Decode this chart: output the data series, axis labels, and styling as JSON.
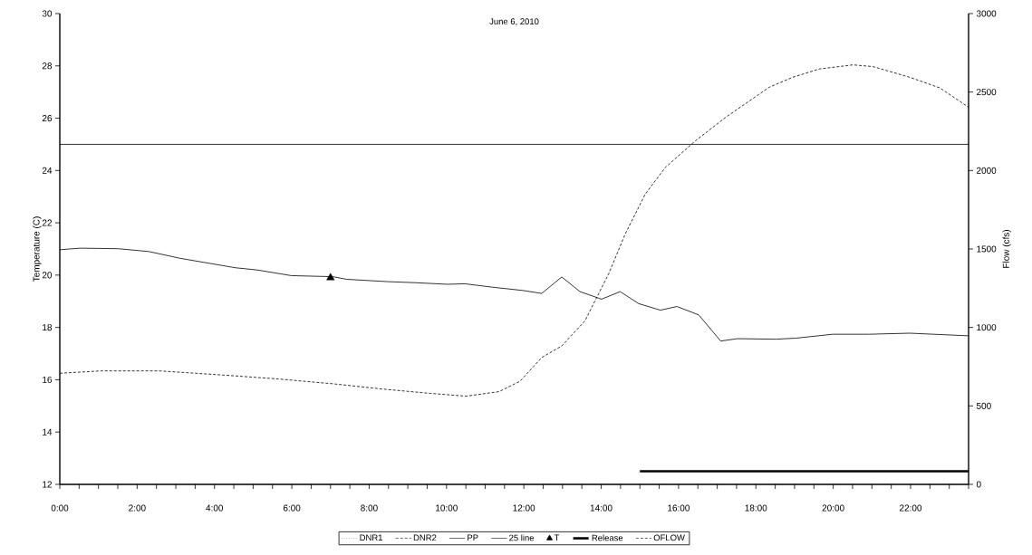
{
  "chart_data": {
    "type": "line",
    "title": "June 6, 2010",
    "ylabel": "Temperature (C)",
    "y2label": "Flow (cfs)",
    "legend": "bottom",
    "grid": false,
    "xlim": [
      0,
      23.5
    ],
    "xticks": [
      {
        "value": 0,
        "label": "0:00"
      },
      {
        "value": 0.5,
        "label": null
      },
      {
        "value": 1,
        "label": null
      },
      {
        "value": 1.5,
        "label": null
      },
      {
        "value": 2,
        "label": "2:00"
      },
      {
        "value": 2.5,
        "label": null
      },
      {
        "value": 3,
        "label": null
      },
      {
        "value": 3.5,
        "label": null
      },
      {
        "value": 4,
        "label": "4:00"
      },
      {
        "value": 4.5,
        "label": null
      },
      {
        "value": 5,
        "label": null
      },
      {
        "value": 5.5,
        "label": null
      },
      {
        "value": 6,
        "label": "6:00"
      },
      {
        "value": 6.5,
        "label": null
      },
      {
        "value": 7,
        "label": null
      },
      {
        "value": 7.5,
        "label": null
      },
      {
        "value": 8,
        "label": "8:00"
      },
      {
        "value": 8.5,
        "label": null
      },
      {
        "value": 9,
        "label": null
      },
      {
        "value": 9.5,
        "label": null
      },
      {
        "value": 10,
        "label": "10:00"
      },
      {
        "value": 10.5,
        "label": null
      },
      {
        "value": 11,
        "label": null
      },
      {
        "value": 11.5,
        "label": null
      },
      {
        "value": 12,
        "label": "12:00"
      },
      {
        "value": 12.5,
        "label": null
      },
      {
        "value": 13,
        "label": null
      },
      {
        "value": 13.5,
        "label": null
      },
      {
        "value": 14,
        "label": "14:00"
      },
      {
        "value": 14.5,
        "label": null
      },
      {
        "value": 15,
        "label": null
      },
      {
        "value": 15.5,
        "label": null
      },
      {
        "value": 16,
        "label": "16:00"
      },
      {
        "value": 16.5,
        "label": null
      },
      {
        "value": 17,
        "label": null
      },
      {
        "value": 17.5,
        "label": null
      },
      {
        "value": 18,
        "label": "18:00"
      },
      {
        "value": 18.5,
        "label": null
      },
      {
        "value": 19,
        "label": null
      },
      {
        "value": 19.5,
        "label": null
      },
      {
        "value": 20,
        "label": "20:00"
      },
      {
        "value": 20.5,
        "label": null
      },
      {
        "value": 21,
        "label": null
      },
      {
        "value": 21.5,
        "label": null
      },
      {
        "value": 22,
        "label": "22:00"
      },
      {
        "value": 22.5,
        "label": null
      },
      {
        "value": 23,
        "label": null
      },
      {
        "value": 23.5,
        "label": null
      }
    ],
    "ylim": [
      12,
      30
    ],
    "yticks": [
      12,
      14,
      16,
      18,
      20,
      22,
      24,
      26,
      28,
      30
    ],
    "y2lim": [
      0,
      3000
    ],
    "y2ticks": [
      0,
      500,
      1000,
      1500,
      2000,
      2500,
      3000
    ],
    "series": [
      {
        "name": "DNR1",
        "color": "#808080",
        "line_style": "dotted"
      },
      {
        "name": "DNR2",
        "color": "#000000",
        "line_style": "dashed"
      },
      {
        "name": "PP",
        "color": "#000000",
        "line_style": "solid",
        "x": [
          0,
          0.52,
          1.51,
          2.31,
          3.12,
          4.55,
          5.09,
          5.99,
          7.06,
          7.42,
          8.49,
          9.21,
          10.02,
          10.47,
          11.18,
          11.99,
          12.46,
          12.98,
          13.45,
          14.01,
          14.49,
          14.97,
          15.53,
          15.96,
          16.52,
          17.09,
          17.52,
          18.52,
          19.04,
          19.99,
          20.94,
          21.98,
          23.5
        ],
        "values": [
          20.97,
          21.03,
          21.01,
          20.9,
          20.64,
          20.28,
          20.2,
          19.98,
          19.94,
          19.84,
          19.75,
          19.71,
          19.65,
          19.67,
          19.54,
          19.41,
          19.3,
          19.93,
          19.37,
          19.08,
          19.37,
          18.91,
          18.66,
          18.8,
          18.48,
          17.48,
          17.57,
          17.55,
          17.59,
          17.74,
          17.74,
          17.78,
          17.68
        ]
      },
      {
        "name": "25 line",
        "color": "#000000",
        "line_style": "solid",
        "x": [
          0,
          23.5
        ],
        "values": [
          25,
          25
        ]
      },
      {
        "name": "T",
        "type": "scatter",
        "color": "#000000",
        "marker": "triangle",
        "x": [
          7
        ],
        "values": [
          19.9
        ]
      },
      {
        "name": "Release",
        "color": "#000000",
        "line_style": "solid",
        "x": [
          15,
          23.5
        ],
        "values": [
          12.5,
          12.5
        ]
      },
      {
        "name": "OFLOW",
        "axis": "y2",
        "color": "#000000",
        "line_style": "dashed",
        "x": [
          0,
          1.06,
          2.58,
          4.19,
          5.63,
          7.06,
          8.32,
          9.57,
          10.51,
          11.36,
          11.9,
          12.46,
          12.98,
          13.58,
          14.19,
          14.62,
          15.14,
          15.66,
          16.44,
          17.22,
          18.34,
          18.95,
          19.64,
          20.51,
          21.03,
          21.98,
          22.76,
          23.5
        ],
        "values": [
          708,
          723,
          723,
          697,
          672,
          641,
          608,
          580,
          562,
          591,
          657,
          808,
          882,
          1042,
          1340,
          1595,
          1850,
          2020,
          2190,
          2339,
          2530,
          2594,
          2647,
          2673,
          2662,
          2594,
          2526,
          2403
        ]
      }
    ]
  }
}
